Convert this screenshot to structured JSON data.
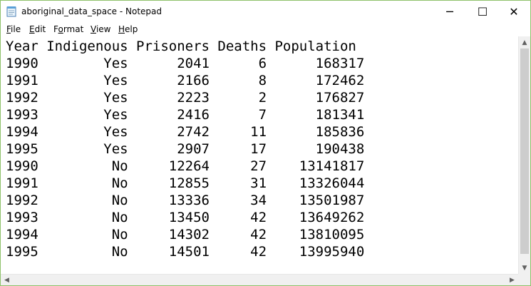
{
  "window": {
    "title": "aboriginal_data_space - Notepad",
    "app_icon": "notepad-icon",
    "controls": {
      "minimize": "─",
      "maximize": "☐",
      "close": "✕"
    }
  },
  "menu": {
    "file": {
      "key": "F",
      "rest": "ile"
    },
    "edit": {
      "key": "E",
      "rest": "dit"
    },
    "format": {
      "pre": "F",
      "key": "o",
      "rest": "rmat"
    },
    "view": {
      "key": "V",
      "rest": "iew"
    },
    "help": {
      "key": "H",
      "rest": "elp"
    }
  },
  "document": {
    "lines": [
      "Year Indigenous Prisoners Deaths Population",
      "1990        Yes      2041      6      168317",
      "1991        Yes      2166      8      172462",
      "1992        Yes      2223      2      176827",
      "1993        Yes      2416      7      181341",
      "1994        Yes      2742     11      185836",
      "1995        Yes      2907     17      190438",
      "1990         No     12264     27    13141817",
      "1991         No     12855     31    13326044",
      "1992         No     13336     34    13501987",
      "1993         No     13450     42    13649262",
      "1994         No     14302     42    13810095",
      "1995         No     14501     42    13995940"
    ]
  },
  "scrollbars": {
    "up": "▲",
    "down": "▼",
    "left": "◀",
    "right": "▶"
  }
}
